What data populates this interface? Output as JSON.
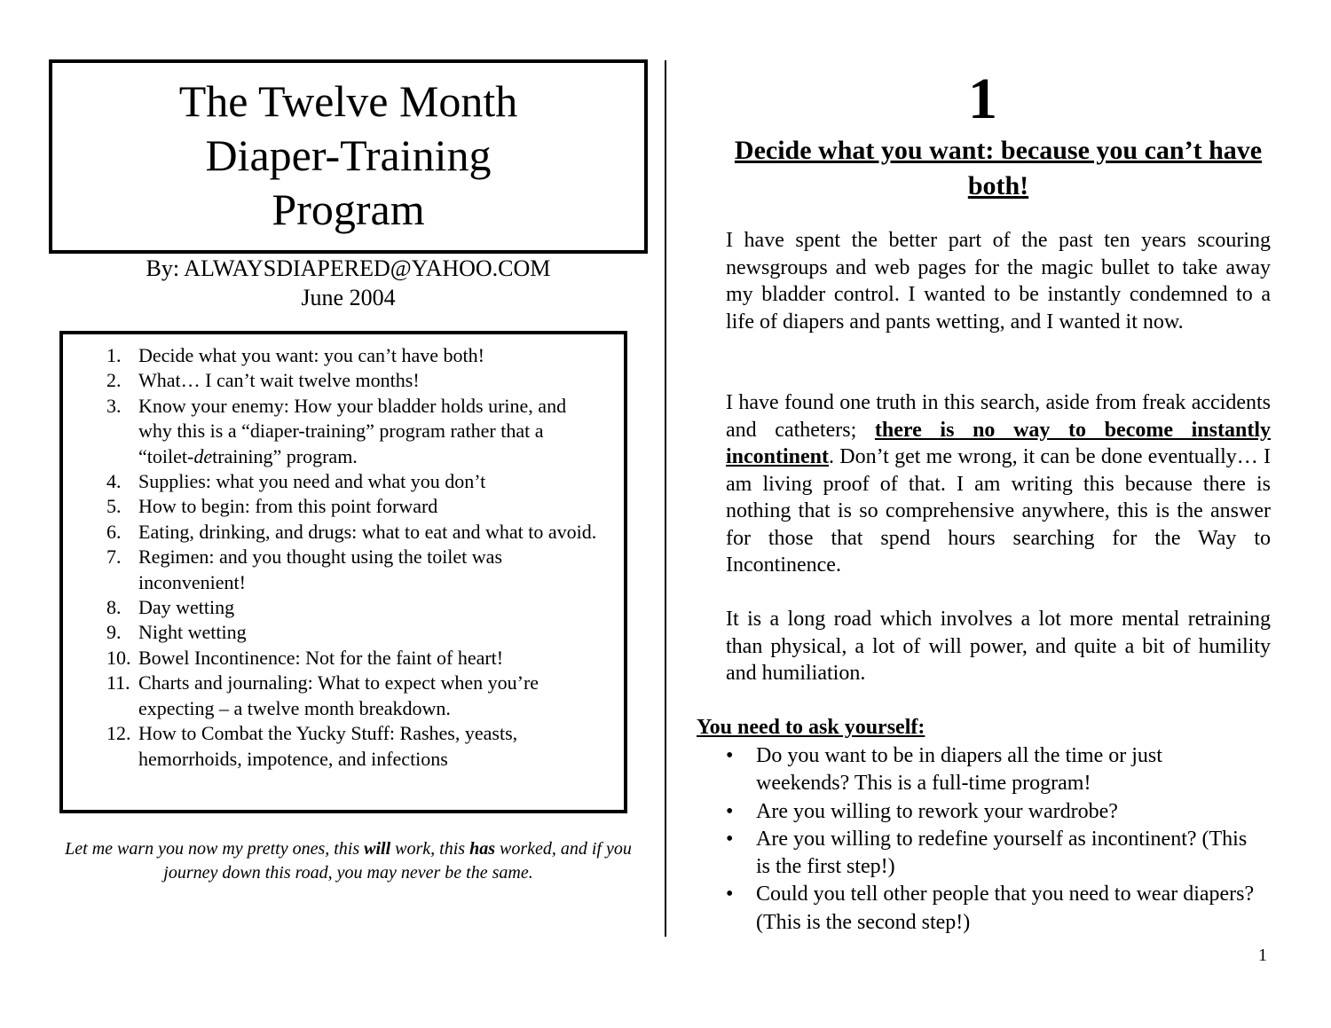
{
  "left": {
    "title_lines": [
      "The Twelve Month",
      "Diaper-Training",
      "Program"
    ],
    "byline": "By:  ALWAYSDIAPERED@YAHOO.COM",
    "date": "June 2004",
    "toc": [
      {
        "num": "1.",
        "text": "Decide what you want:  you can’t have both!"
      },
      {
        "num": "2.",
        "text": "What… I can’t wait twelve months!"
      },
      {
        "num": "3.",
        "text_before": "Know your enemy:  How your bladder holds urine, and why this is a “diaper-training” program rather that a “toilet-",
        "text_italic": "de",
        "text_after": "training” program."
      },
      {
        "num": "4.",
        "text": "Supplies:  what you need and what you don’t"
      },
      {
        "num": "5.",
        "text": "How to begin:  from this point forward"
      },
      {
        "num": "6.",
        "text": "Eating, drinking, and drugs: what to eat and what to avoid."
      },
      {
        "num": "7.",
        "text": "Regimen:  and you thought using the toilet was inconvenient!"
      },
      {
        "num": "8.",
        "text": "Day wetting"
      },
      {
        "num": "9.",
        "text": "Night wetting"
      },
      {
        "num": "10.",
        "text": "Bowel Incontinence: Not for the faint of heart!"
      },
      {
        "num": "11.",
        "text": "Charts and journaling:  What to expect when you’re expecting – a twelve month breakdown."
      },
      {
        "num": "12.",
        "text": "How to Combat the Yucky Stuff:  Rashes, yeasts, hemorrhoids, impotence, and infections"
      }
    ],
    "warning": {
      "a": "Let me warn you now my pretty ones, this ",
      "b": "will",
      "c": " work, this ",
      "d": "has",
      "e": " worked, and if you journey down this road,  you may never be the same."
    }
  },
  "right": {
    "chapter_number": "1",
    "heading": "Decide what you want:  because you can’t have both!",
    "p1": "I have spent the better part of the past ten years scouring newsgroups and web pages for the magic bullet to take away my bladder control.  I wanted to be instantly condemned to a life of diapers and pants wetting, and I wanted it now.",
    "p2_a": "I have found one truth in this search, aside from freak accidents and catheters; ",
    "p2_b": "there is no way to become instantly incontinent",
    "p2_c": ".  Don’t get me wrong, it can be done eventually… I am living proof of that.  I am writing this because there is nothing that is so comprehensive anywhere, this is the answer for those that spend hours searching for the Way to Incontinence.",
    "p3": "It is a long road which involves a lot more mental retraining than physical, a lot of will power, and quite a bit of humility and humiliation.",
    "ask_heading": "You need to ask yourself:",
    "bullets": [
      "Do you want to be in diapers all the time or just weekends?  This is a full-time program!",
      "Are you willing to rework your wardrobe?",
      "Are you willing to redefine yourself as incontinent? (This is the first step!)",
      "Could you tell other people that you need to wear diapers?  (This is the second step!)"
    ],
    "bullet_glyph": "•"
  },
  "page_number": "1"
}
